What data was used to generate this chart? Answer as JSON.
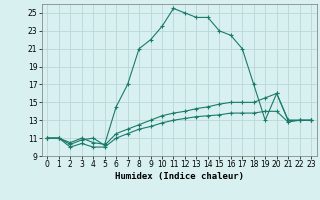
{
  "xlabel": "Humidex (Indice chaleur)",
  "bg_color": "#d8f0f0",
  "grid_color": "#b8d8d8",
  "line_color": "#1a7a6a",
  "xlim": [
    -0.5,
    23.5
  ],
  "ylim": [
    9,
    26
  ],
  "xticks": [
    0,
    1,
    2,
    3,
    4,
    5,
    6,
    7,
    8,
    9,
    10,
    11,
    12,
    13,
    14,
    15,
    16,
    17,
    18,
    19,
    20,
    21,
    22,
    23
  ],
  "yticks": [
    9,
    11,
    13,
    15,
    17,
    19,
    21,
    23,
    25
  ],
  "series1_x": [
    0,
    1,
    2,
    3,
    4,
    5,
    6,
    7,
    8,
    9,
    10,
    11,
    12,
    13,
    14,
    15,
    16,
    17,
    18,
    19,
    20,
    21,
    22,
    23
  ],
  "series1_y": [
    11,
    11,
    10.5,
    11,
    10.5,
    10.3,
    14.5,
    17,
    21,
    22,
    23.5,
    25.5,
    25,
    24.5,
    24.5,
    23,
    22.5,
    21,
    17,
    13,
    16,
    13,
    13,
    13
  ],
  "series2_x": [
    0,
    1,
    2,
    3,
    4,
    5,
    6,
    7,
    8,
    9,
    10,
    11,
    12,
    13,
    14,
    15,
    16,
    17,
    18,
    19,
    20,
    21,
    22,
    23
  ],
  "series2_y": [
    11,
    11,
    10.3,
    10.8,
    11,
    10.2,
    11.5,
    12,
    12.5,
    13,
    13.5,
    13.8,
    14,
    14.3,
    14.5,
    14.8,
    15,
    15,
    15,
    15.5,
    16,
    13,
    13,
    13
  ],
  "series3_x": [
    0,
    1,
    2,
    3,
    4,
    5,
    6,
    7,
    8,
    9,
    10,
    11,
    12,
    13,
    14,
    15,
    16,
    17,
    18,
    19,
    20,
    21,
    22,
    23
  ],
  "series3_y": [
    11,
    11,
    10.0,
    10.4,
    10.0,
    10.0,
    11.0,
    11.5,
    12.0,
    12.3,
    12.7,
    13.0,
    13.2,
    13.4,
    13.5,
    13.6,
    13.8,
    13.8,
    13.8,
    14.0,
    14.0,
    12.8,
    13.0,
    13.0
  ],
  "tick_fontsize": 5.5,
  "xlabel_fontsize": 6.5
}
